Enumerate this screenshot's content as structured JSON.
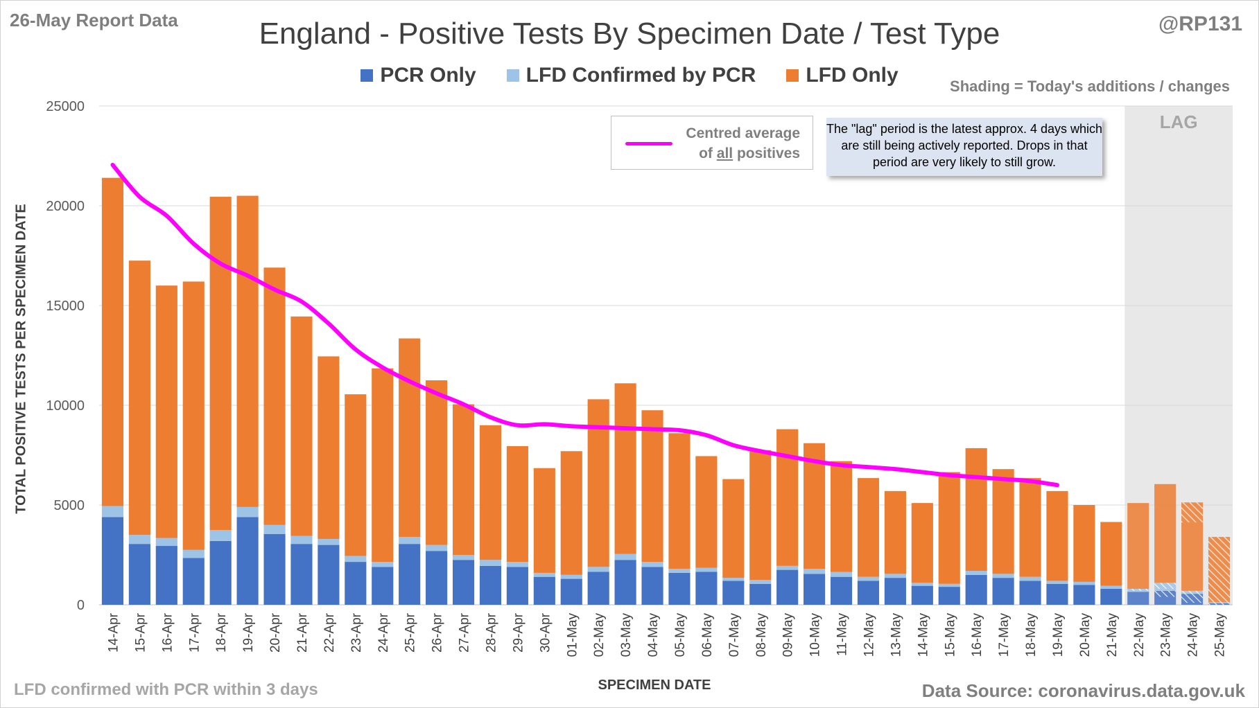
{
  "report_date": "26-May Report Data",
  "handle": "@RP131",
  "shading_note": "Shading = Today's additions / changes",
  "footnote": "LFD confirmed with PCR within 3 days",
  "source": "Data Source: coronavirus.data.gov.uk",
  "avg_legend": {
    "line1": "Centred average",
    "line2_prefix": "of ",
    "line2_emph": "all",
    "line2_suffix": " positives"
  },
  "lag_note": "The \"lag\" period is the latest approx. 4 days which are still being actively reported.  Drops in that period are very likely to still grow.",
  "lag_label": "LAG",
  "colors": {
    "pcr": "#4472c4",
    "lfd_confirmed": "#9dc3e6",
    "lfd": "#ed7d31",
    "average": "#ff00ff",
    "lag_band": "#e8e8e8"
  },
  "chart_data": {
    "type": "bar",
    "stacked": true,
    "title": "England - Positive Tests By Specimen Date / Test Type",
    "xlabel": "SPECIMEN DATE",
    "ylabel": "TOTAL POSITIVE TESTS PER SPECIMEN DATE",
    "ylim": [
      0,
      25000
    ],
    "yticks": [
      0,
      5000,
      10000,
      15000,
      20000,
      25000
    ],
    "grid": true,
    "legend_position": "top",
    "categories": [
      "14-Apr",
      "15-Apr",
      "16-Apr",
      "17-Apr",
      "18-Apr",
      "19-Apr",
      "20-Apr",
      "21-Apr",
      "22-Apr",
      "23-Apr",
      "24-Apr",
      "25-Apr",
      "26-Apr",
      "27-Apr",
      "28-Apr",
      "29-Apr",
      "30-Apr",
      "01-May",
      "02-May",
      "03-May",
      "04-May",
      "05-May",
      "06-May",
      "07-May",
      "08-May",
      "09-May",
      "10-May",
      "11-May",
      "12-May",
      "13-May",
      "14-May",
      "15-May",
      "16-May",
      "17-May",
      "18-May",
      "19-May",
      "20-May",
      "21-May",
      "22-May",
      "23-May",
      "24-May",
      "25-May"
    ],
    "series": [
      {
        "name": "PCR Only",
        "values": [
          4400,
          3050,
          2950,
          2350,
          3200,
          4400,
          3550,
          3050,
          3000,
          2150,
          1900,
          3050,
          2700,
          2250,
          1950,
          1900,
          1400,
          1300,
          1650,
          2250,
          1900,
          1600,
          1650,
          1200,
          1050,
          1750,
          1550,
          1400,
          1200,
          1350,
          950,
          900,
          1500,
          1350,
          1200,
          1050,
          1000,
          800,
          650,
          700,
          550,
          80
        ]
      },
      {
        "name": "LFD Confirmed by PCR",
        "values": [
          550,
          450,
          400,
          400,
          550,
          500,
          450,
          400,
          300,
          300,
          250,
          350,
          300,
          250,
          300,
          250,
          200,
          200,
          250,
          300,
          250,
          200,
          200,
          150,
          200,
          200,
          250,
          250,
          200,
          200,
          150,
          150,
          200,
          200,
          200,
          150,
          150,
          150,
          150,
          400,
          150,
          50
        ]
      },
      {
        "name": "LFD Only",
        "values": [
          16450,
          13750,
          12650,
          13450,
          16700,
          15600,
          12900,
          11000,
          9150,
          8100,
          9700,
          9950,
          8250,
          7550,
          6750,
          5800,
          5250,
          6200,
          8400,
          8550,
          7600,
          6800,
          5600,
          4950,
          6500,
          6850,
          6300,
          5550,
          4950,
          4150,
          4000,
          5600,
          6150,
          5250,
          4950,
          4500,
          3850,
          3200,
          4300,
          4950,
          4430,
          3270
        ]
      }
    ],
    "today_additions": {
      "categories": [
        "22-May",
        "23-May",
        "24-May",
        "25-May"
      ],
      "pcr": [
        0,
        300,
        450,
        80
      ],
      "lfd_confirmed": [
        100,
        300,
        150,
        50
      ],
      "lfd": [
        0,
        0,
        1000,
        3270
      ]
    },
    "average": {
      "name": "Centred average of all positives",
      "values": [
        22050,
        20450,
        19500,
        18100,
        17100,
        16500,
        15800,
        15200,
        14100,
        12800,
        11900,
        11200,
        10600,
        10050,
        9400,
        9000,
        9050,
        8950,
        8900,
        8850,
        8800,
        8750,
        8500,
        8000,
        7700,
        7450,
        7200,
        7000,
        6900,
        6800,
        6650,
        6500,
        6400,
        6300,
        6200,
        6000
      ]
    },
    "lag_period": [
      "22-May",
      "25-May"
    ]
  }
}
